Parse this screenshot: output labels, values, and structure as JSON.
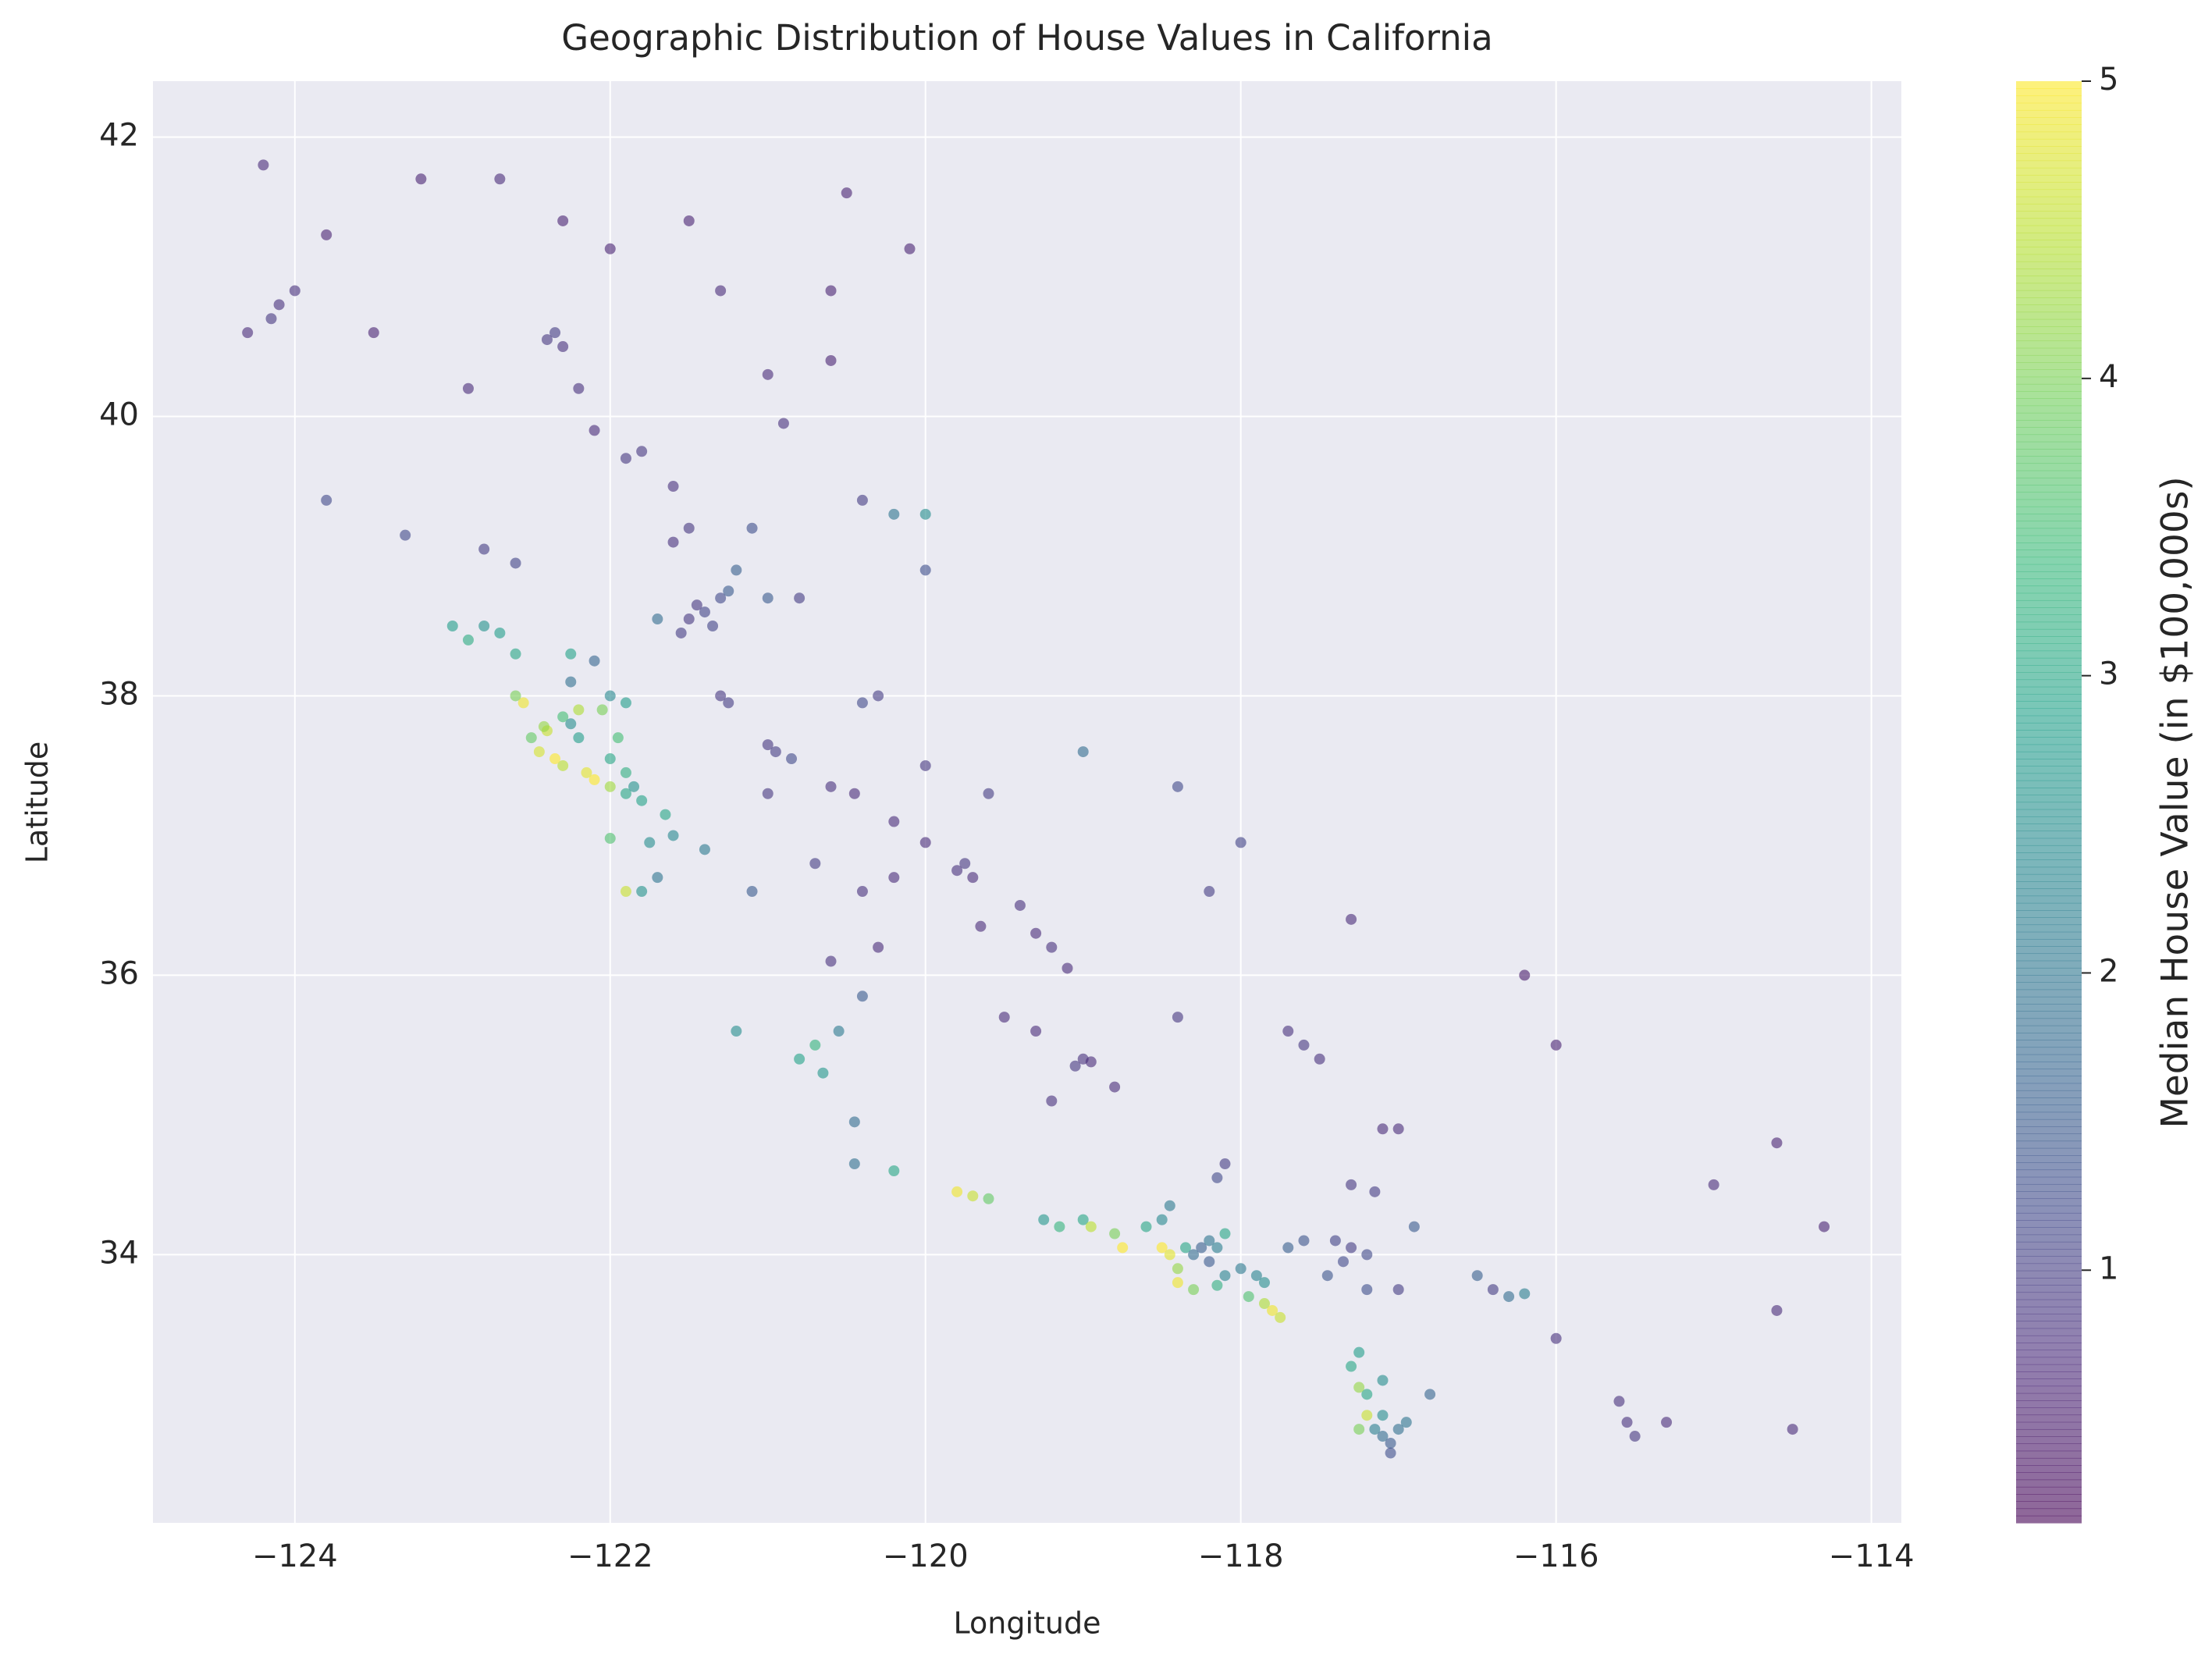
{
  "chart_data": {
    "type": "scatter",
    "title": "Geographic Distribution of House Values in California",
    "xlabel": "Longitude",
    "ylabel": "Latitude",
    "xlim": [
      -124.9,
      -113.81
    ],
    "ylim": [
      32.08,
      42.4
    ],
    "xticks": [
      {
        "value": -124,
        "label": "−124"
      },
      {
        "value": -122,
        "label": "−122"
      },
      {
        "value": -120,
        "label": "−120"
      },
      {
        "value": -118,
        "label": "−118"
      },
      {
        "value": -116,
        "label": "−116"
      },
      {
        "value": -114,
        "label": "−114"
      }
    ],
    "yticks": [
      34,
      36,
      38,
      40,
      42
    ],
    "grid": true,
    "colormap": "viridis",
    "alpha": 0.6,
    "colorbar": {
      "label": "Median House Value (in $100,000s)",
      "lim": [
        0.15,
        5
      ],
      "ticks": [
        1,
        2,
        3,
        4,
        5
      ]
    },
    "x": [
      -124.2,
      -124.1,
      -124.15,
      -124.0,
      -124.3,
      -123.8,
      -123.5,
      -123.2,
      -122.7,
      -122.3,
      -122.4,
      -122.35,
      -122.3,
      -122.2,
      -122.1,
      -121.9,
      -121.6,
      -121.8,
      -121.6,
      -121.5,
      -121.0,
      -120.9,
      -120.6,
      -121.3,
      -120.5,
      -120.1,
      -123.3,
      -122.8,
      -123.8,
      -122.6,
      -122.9,
      -122.0,
      -121.5,
      -120.6,
      -120.0,
      -120.0,
      -120.4,
      -120.2,
      -121.4,
      -121.5,
      -121.3,
      -121.2,
      -121.1,
      -121.25,
      -121.55,
      -121.0,
      -120.8,
      -121.7,
      -121.45,
      -121.35,
      -121.3,
      -121.25,
      -121.0,
      -120.95,
      -120.85,
      -120.6,
      -120.45,
      -120.2,
      -120.0,
      -119.8,
      -119.75,
      -119.7,
      -119.65,
      -119.4,
      -119.3,
      -119.2,
      -119.1,
      -119.0,
      -119.05,
      -118.95,
      -119.2,
      -119.3,
      -119.5,
      -118.8,
      -120.3,
      -120.4,
      -120.0,
      -119.6,
      -119.0,
      -118.4,
      -118.2,
      -118.0,
      -117.7,
      -117.6,
      -117.3,
      -118.4,
      -120.6,
      -120.3,
      -120.4,
      -120.7,
      -121.0,
      -120.2,
      -122.4,
      -122.42,
      -122.3,
      -122.25,
      -122.2,
      -122.1,
      -122.15,
      -122.0,
      -121.9,
      -121.85,
      -122.3,
      -122.35,
      -122.5,
      -122.55,
      -122.6,
      -122.7,
      -122.8,
      -122.6,
      -122.25,
      -122.0,
      -121.9,
      -122.05,
      -121.95,
      -122.2,
      -122.0,
      -121.9,
      -121.65,
      -121.6,
      -121.75,
      -121.8,
      -121.9,
      -121.7,
      -122.1,
      -122.25,
      -123.0,
      -122.9,
      -121.4,
      -121.1,
      -122.0,
      -122.45,
      -121.8,
      -121.2,
      -120.8,
      -120.65,
      -120.7,
      -120.45,
      -120.45,
      -120.2,
      -119.8,
      -119.7,
      -119.6,
      -119.25,
      -119.15,
      -119.0,
      -118.95,
      -120.55,
      -120.4,
      -118.5,
      -118.45,
      -118.4,
      -118.35,
      -118.3,
      -118.25,
      -118.2,
      -118.2,
      -118.1,
      -118.15,
      -118.1,
      -118.0,
      -118.3,
      -118.4,
      -118.15,
      -117.95,
      -117.85,
      -117.8,
      -117.75,
      -117.85,
      -117.9,
      -117.7,
      -117.6,
      -117.4,
      -117.3,
      -117.2,
      -117.35,
      -117.45,
      -117.2,
      -117.0,
      -118.6,
      -118.5,
      -118.45,
      -118.8,
      -118.75,
      -118.15,
      -118.1,
      -117.3,
      -117.15,
      -117.0,
      -116.9,
      -116.5,
      -116.3,
      -116.4,
      -116.2,
      -117.2,
      -117.25,
      -117.15,
      -117.1,
      -117.05,
      -117.0,
      -117.1,
      -117.2,
      -117.25,
      -117.3,
      -117.1,
      -117.25,
      -116.95,
      -117.05,
      -116.8,
      -115.55,
      -115.5,
      -115.6,
      -114.6,
      -114.6,
      -116.0,
      -114.5,
      -115.3,
      -116.0,
      -114.3,
      -115.0,
      -116.2,
      -117.1,
      -117.5
    ],
    "values": [
      41.8,
      40.8,
      40.7,
      40.9,
      40.6,
      41.3,
      40.6,
      41.7,
      41.7,
      41.4,
      40.55,
      40.6,
      40.5,
      40.2,
      39.9,
      39.7,
      39.5,
      39.75,
      39.1,
      39.2,
      40.3,
      39.95,
      40.4,
      40.9,
      41.6,
      41.2,
      39.15,
      39.05,
      39.4,
      38.95,
      40.2,
      41.2,
      41.4,
      40.9,
      39.3,
      38.9,
      39.4,
      39.3,
      38.6,
      38.55,
      38.7,
      38.9,
      39.2,
      38.75,
      38.45,
      38.7,
      38.7,
      38.55,
      38.65,
      38.5,
      38.0,
      37.95,
      37.65,
      37.6,
      37.55,
      37.35,
      37.3,
      37.1,
      36.95,
      36.75,
      36.8,
      36.7,
      36.35,
      36.5,
      36.3,
      36.2,
      36.05,
      35.4,
      35.35,
      35.38,
      35.1,
      35.6,
      35.7,
      35.2,
      38.0,
      37.95,
      37.5,
      37.3,
      37.6,
      37.35,
      36.6,
      36.95,
      35.6,
      35.5,
      36.4,
      35.7,
      36.1,
      36.2,
      36.6,
      36.8,
      37.3,
      36.7,
      37.75,
      37.78,
      37.85,
      37.8,
      37.7,
      37.4,
      37.45,
      37.35,
      37.3,
      37.35,
      37.5,
      37.55,
      37.7,
      37.95,
      38.0,
      38.45,
      38.5,
      38.3,
      38.3,
      38.0,
      37.95,
      37.9,
      37.7,
      37.9,
      37.55,
      37.45,
      37.15,
      37.0,
      36.95,
      36.6,
      36.6,
      36.7,
      38.25,
      38.1,
      38.5,
      38.4,
      36.9,
      36.6,
      36.98,
      37.6,
      37.25,
      35.6,
      35.4,
      35.3,
      35.5,
      34.95,
      34.65,
      34.6,
      34.45,
      34.42,
      34.4,
      34.25,
      34.2,
      34.25,
      34.2,
      35.6,
      35.85,
      34.05,
      34.0,
      33.9,
      34.05,
      34.0,
      34.05,
      33.95,
      34.1,
      34.15,
      34.05,
      33.85,
      33.9,
      33.75,
      33.8,
      33.78,
      33.7,
      33.65,
      33.6,
      33.55,
      33.8,
      33.85,
      34.05,
      34.1,
      34.1,
      34.05,
      34.0,
      33.95,
      33.85,
      33.75,
      33.75,
      34.2,
      34.25,
      34.35,
      34.15,
      34.05,
      34.55,
      34.65,
      34.5,
      34.45,
      34.9,
      34.2,
      33.85,
      33.7,
      33.75,
      33.72,
      32.85,
      32.75,
      32.75,
      32.7,
      32.65,
      32.75,
      32.85,
      33.0,
      33.05,
      33.2,
      33.1,
      33.3,
      32.8,
      32.58,
      33.0,
      32.8,
      32.7,
      32.95,
      33.6,
      34.8,
      33.4,
      32.75,
      32.8,
      35.5,
      34.2,
      34.5,
      36.0,
      34.9,
      35.4
    ],
    "color_values": [
      0.7,
      0.8,
      0.9,
      0.8,
      0.7,
      0.6,
      0.6,
      0.6,
      0.7,
      0.6,
      0.9,
      1.0,
      0.8,
      0.8,
      0.7,
      0.9,
      0.8,
      0.9,
      0.8,
      0.9,
      0.7,
      0.8,
      0.6,
      0.7,
      0.6,
      0.6,
      1.2,
      1.0,
      1.2,
      1.1,
      0.7,
      0.6,
      0.6,
      0.6,
      2.5,
      1.3,
      1.0,
      2.0,
      1.1,
      0.9,
      1.2,
      1.6,
      1.3,
      1.5,
      1.0,
      1.5,
      1.0,
      1.8,
      0.9,
      1.1,
      0.9,
      1.0,
      0.9,
      1.0,
      1.2,
      0.8,
      0.7,
      0.7,
      0.7,
      0.8,
      0.9,
      0.7,
      0.7,
      0.8,
      0.7,
      0.8,
      0.7,
      0.8,
      0.9,
      0.7,
      0.8,
      0.7,
      0.7,
      0.7,
      1.0,
      1.2,
      0.9,
      1.0,
      1.8,
      1.2,
      1.0,
      1.1,
      0.8,
      0.9,
      0.7,
      0.9,
      0.8,
      0.7,
      0.8,
      1.0,
      0.9,
      0.7,
      4.6,
      4.2,
      3.5,
      2.5,
      2.8,
      5.0,
      4.8,
      4.3,
      3.0,
      2.6,
      4.5,
      5.0,
      3.8,
      4.9,
      4.0,
      2.8,
      2.6,
      3.0,
      2.9,
      2.4,
      2.8,
      4.0,
      3.5,
      4.4,
      3.0,
      3.2,
      3.0,
      2.4,
      2.5,
      2.6,
      4.6,
      2.0,
      1.7,
      1.9,
      2.8,
      3.1,
      2.1,
      1.5,
      3.6,
      4.7,
      2.9,
      2.5,
      2.9,
      2.7,
      3.3,
      1.8,
      1.9,
      3.0,
      4.9,
      4.6,
      3.8,
      2.7,
      3.3,
      3.0,
      4.5,
      2.1,
      1.5,
      5.0,
      4.8,
      4.2,
      3.0,
      1.8,
      1.6,
      1.5,
      2.0,
      3.0,
      2.2,
      2.3,
      2.1,
      4.0,
      4.9,
      3.2,
      3.6,
      4.4,
      4.9,
      4.6,
      2.5,
      2.3,
      1.6,
      1.4,
      1.1,
      1.0,
      1.2,
      1.2,
      1.4,
      1.3,
      1.0,
      3.0,
      2.4,
      2.1,
      4.0,
      5.0,
      1.2,
      1.0,
      0.9,
      1.0,
      0.7,
      1.5,
      1.6,
      1.8,
      1.0,
      2.2,
      4.6,
      4.0,
      2.2,
      1.8,
      1.5,
      1.9,
      2.5,
      3.0,
      4.2,
      3.0,
      2.5,
      2.8,
      2.0,
      1.3,
      1.7,
      0.8,
      0.9,
      0.8,
      0.7,
      0.6,
      0.8,
      0.7,
      0.7,
      0.6,
      0.6,
      0.7,
      0.5,
      0.7,
      0.8
    ]
  }
}
